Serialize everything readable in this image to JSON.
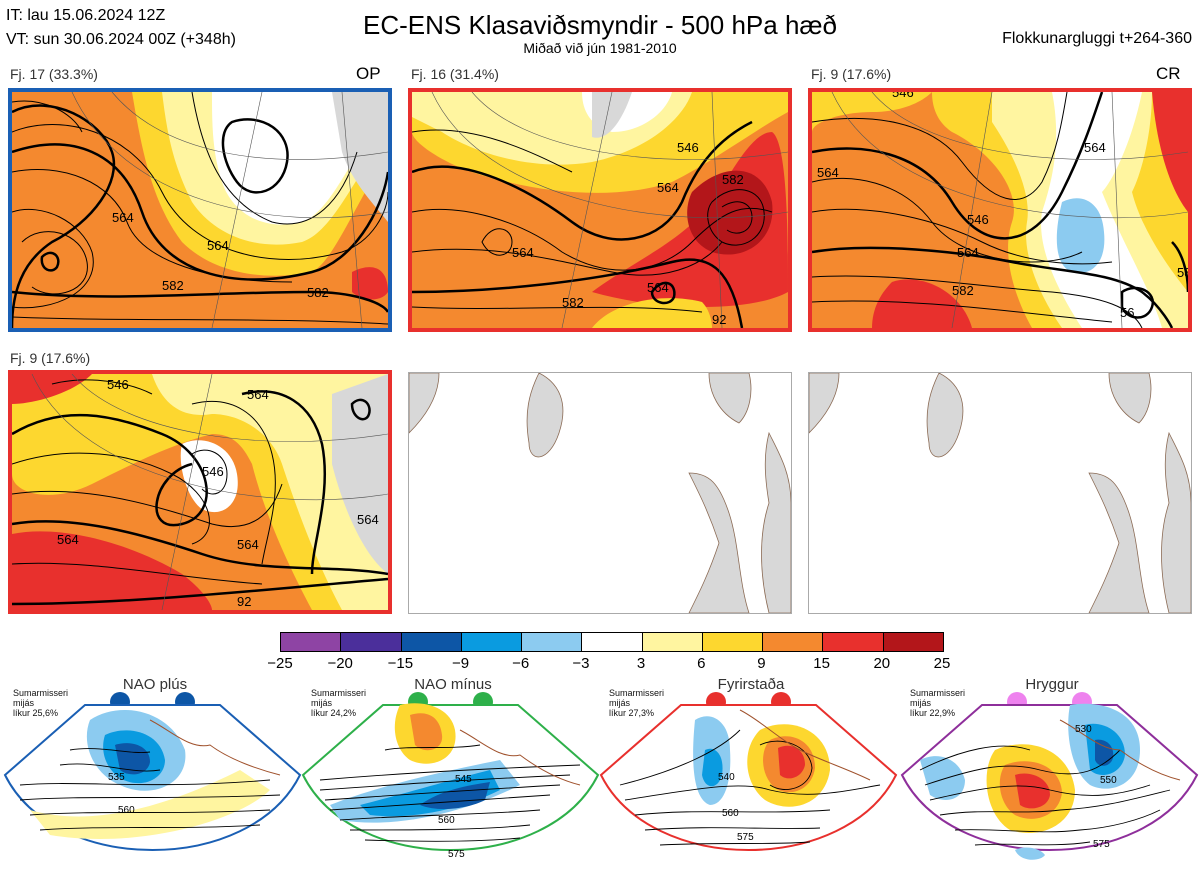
{
  "header": {
    "it_line": "IT: lau 15.06.2024 12Z",
    "vt_line": "VT: sun 30.06.2024 00Z  (+348h)",
    "title": "EC-ENS Klasaviðsmyndir - 500 hPa hæð",
    "subtitle": "Miðað við jún 1981-2010",
    "window": "Flokkunargluggi t+264-360"
  },
  "panels": [
    {
      "label": "Fj. 17 (33.3%)",
      "tag": "OP",
      "border": "#1a5fb4"
    },
    {
      "label": "Fj. 16 (31.4%)",
      "tag": "",
      "border": "#e8302d"
    },
    {
      "label": "Fj. 9 (17.6%)",
      "tag": "CR",
      "border": "#e8302d"
    },
    {
      "label": "Fj. 9 (17.6%)",
      "tag": "",
      "border": "#e8302d"
    }
  ],
  "contour_labels": [
    "546",
    "564",
    "582",
    "92"
  ],
  "colorbar": {
    "ticks": [
      "−25",
      "−20",
      "−15",
      "−9",
      "−6",
      "−3",
      "3",
      "6",
      "9",
      "15",
      "20",
      "25"
    ],
    "colors": [
      "#8e44a4",
      "#4b2f9b",
      "#0d56a6",
      "#0a9be0",
      "#8ccbf0",
      "#ffffff",
      "#fff5a0",
      "#fdd72f",
      "#f4892f",
      "#e8302d",
      "#b3161a"
    ]
  },
  "regimes": [
    {
      "name": "NAO plús",
      "season": "Sumarmisseri",
      "word": "mijás",
      "prob": "líkur 25,6%",
      "dot": "#0d56a6",
      "frame": "#1a5fb4",
      "iso": [
        "535",
        "560"
      ]
    },
    {
      "name": "NAO mínus",
      "season": "Sumarmisseri",
      "word": "mijás",
      "prob": "líkur 24,2%",
      "dot": "#2eb04a",
      "frame": "#2eb04a",
      "iso": [
        "545",
        "560",
        "575"
      ]
    },
    {
      "name": "Fyrirstaða",
      "season": "Sumarmisseri",
      "word": "mijás",
      "prob": "líkur 27,3%",
      "dot": "#e8302d",
      "frame": "#e8302d",
      "iso": [
        "540",
        "560",
        "575"
      ]
    },
    {
      "name": "Hryggur",
      "season": "Sumarmisseri",
      "word": "mijás",
      "prob": "líkur 22,9%",
      "dot": "#ee82ee",
      "frame": "#8e2f9b",
      "iso": [
        "530",
        "550",
        "575"
      ]
    }
  ]
}
